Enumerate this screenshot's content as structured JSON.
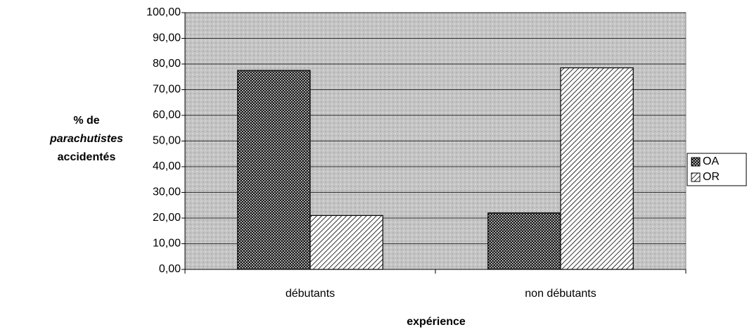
{
  "chart_data": {
    "type": "bar",
    "xlabel": "expérience",
    "ylabel": [
      "% de",
      "parachutistes",
      "accidentés"
    ],
    "categories": [
      "débutants",
      "non débutants"
    ],
    "series": [
      {
        "name": "OA",
        "color": "#1a1a1a",
        "pattern": "dots",
        "values": [
          77.5,
          22
        ]
      },
      {
        "name": "OR",
        "color": "#ffffff",
        "pattern": "hatch",
        "values": [
          21,
          78.5
        ]
      }
    ],
    "ylim": [
      0,
      100
    ],
    "yticks": [
      {
        "value": 0,
        "label": "0,00"
      },
      {
        "value": 10,
        "label": "10,00"
      },
      {
        "value": 20,
        "label": "20,00"
      },
      {
        "value": 30,
        "label": "30,00"
      },
      {
        "value": 40,
        "label": "40,00"
      },
      {
        "value": 50,
        "label": "50,00"
      },
      {
        "value": 60,
        "label": "60,00"
      },
      {
        "value": 70,
        "label": "70,00"
      },
      {
        "value": 80,
        "label": "80,00"
      },
      {
        "value": 90,
        "label": "90,00"
      },
      {
        "value": 100,
        "label": "100,00"
      }
    ],
    "grid": true,
    "legend": "right"
  }
}
